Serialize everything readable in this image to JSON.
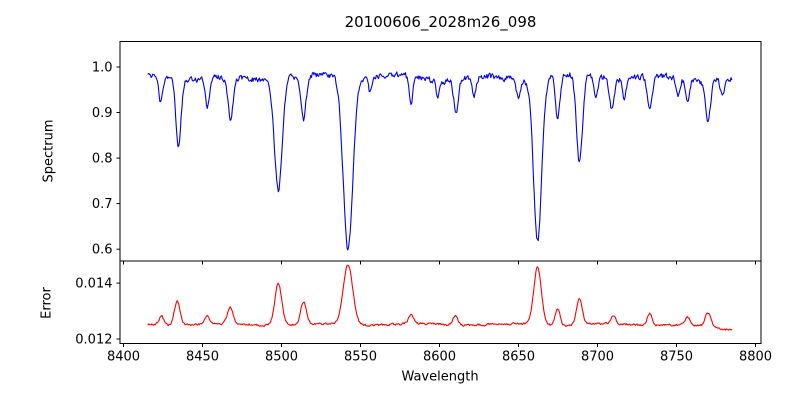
{
  "chart_data": {
    "type": "line",
    "title": "20100606_2028m26_098",
    "xlabel": "Wavelength",
    "background_color": "#ffffff",
    "axis_color": "#000000",
    "xlim": [
      8397.8,
      8803.5
    ],
    "xticks": [
      8400,
      8450,
      8500,
      8550,
      8600,
      8650,
      8700,
      8750,
      8800
    ],
    "data_wavelength_range": [
      8415.5,
      8785.0
    ],
    "panels": [
      {
        "name": "spectrum",
        "ylabel": "Spectrum",
        "line_color": "#0000ee",
        "ylim": [
          0.574,
          1.056
        ],
        "yticks": [
          {
            "v": 1.0,
            "label": "1.0"
          },
          {
            "v": 0.9,
            "label": "0.9"
          },
          {
            "v": 0.8,
            "label": "0.8"
          },
          {
            "v": 0.7,
            "label": "0.7"
          },
          {
            "v": 0.6,
            "label": "0.6"
          }
        ],
        "series": {
          "description": "normalized stellar flux; continuum ~0.977 with noise, absorption features listed as [center_angstrom, amplitude, sigma_angstrom]",
          "x_start": 8415.5,
          "x_end": 8785.0,
          "x_step": 0.5,
          "base": 0.977,
          "noise": 0.011,
          "seed": 20100606,
          "wiggles": [
            {
              "amp": 0.005,
              "period": 55,
              "phase": 0.5
            },
            {
              "amp": 0.0035,
              "period": 150,
              "phase": 2.0
            }
          ],
          "features": [
            [
              8423.5,
              -0.055,
              1.2
            ],
            [
              8434.8,
              -0.15,
              1.6
            ],
            [
              8453.0,
              -0.06,
              1.3
            ],
            [
              8467.8,
              -0.095,
              1.6
            ],
            [
              8498.0,
              -0.245,
              2.4
            ],
            [
              8514.0,
              -0.1,
              1.6
            ],
            [
              8542.1,
              -0.38,
              3.0
            ],
            [
              8556.0,
              -0.03,
              1.0
            ],
            [
              8582.0,
              -0.055,
              1.2
            ],
            [
              8599.0,
              -0.035,
              1.1
            ],
            [
              8610.5,
              -0.07,
              1.4
            ],
            [
              8622.0,
              -0.04,
              1.2
            ],
            [
              8650.0,
              -0.045,
              1.3
            ],
            [
              8662.1,
              -0.355,
              2.6
            ],
            [
              8674.8,
              -0.1,
              1.4
            ],
            [
              8688.6,
              -0.195,
              1.9
            ],
            [
              8699.0,
              -0.05,
              1.2
            ],
            [
              8709.0,
              -0.065,
              1.5
            ],
            [
              8717.0,
              -0.045,
              1.2
            ],
            [
              8733.0,
              -0.08,
              1.5
            ],
            [
              8751.0,
              -0.045,
              1.2
            ],
            [
              8757.0,
              -0.05,
              1.2
            ],
            [
              8770.0,
              -0.085,
              1.6
            ],
            [
              8779.0,
              -0.04,
              1.1
            ]
          ]
        }
      },
      {
        "name": "error",
        "ylabel": "Error",
        "line_color": "#ff0000",
        "ylim": [
          0.01184,
          0.01479
        ],
        "yticks": [
          {
            "v": 0.014,
            "label": "0.014"
          },
          {
            "v": 0.012,
            "label": "0.012"
          }
        ],
        "series": {
          "description": "flux error; baseline ~0.01252 with peaks at absorption lines, [center_angstrom, amplitude, sigma_angstrom]",
          "x_start": 8415.5,
          "x_end": 8785.0,
          "x_step": 0.5,
          "base": 0.01252,
          "noise": 6e-05,
          "seed": 2028,
          "wiggles": [
            {
              "amp": 3e-05,
              "period": 60,
              "phase": 1.0
            }
          ],
          "end_slope": {
            "from": 8748,
            "rate": -5e-06
          },
          "features": [
            [
              8424.0,
              0.0003,
              1.5
            ],
            [
              8434.0,
              0.00085,
              1.8
            ],
            [
              8453.0,
              0.0003,
              1.5
            ],
            [
              8467.5,
              0.00058,
              1.8
            ],
            [
              8498.0,
              0.00148,
              2.2
            ],
            [
              8514.0,
              0.0008,
              1.8
            ],
            [
              8542.1,
              0.00215,
              3.0
            ],
            [
              8582.0,
              0.00032,
              1.5
            ],
            [
              8610.0,
              0.00035,
              1.5
            ],
            [
              8662.1,
              0.00205,
              2.4
            ],
            [
              8674.8,
              0.0006,
              1.5
            ],
            [
              8688.6,
              0.00095,
              1.8
            ],
            [
              8710.0,
              0.0003,
              1.5
            ],
            [
              8733.0,
              0.00042,
              1.6
            ],
            [
              8757.0,
              0.0003,
              1.5
            ],
            [
              8770.0,
              0.0005,
              1.8
            ]
          ]
        }
      }
    ]
  }
}
